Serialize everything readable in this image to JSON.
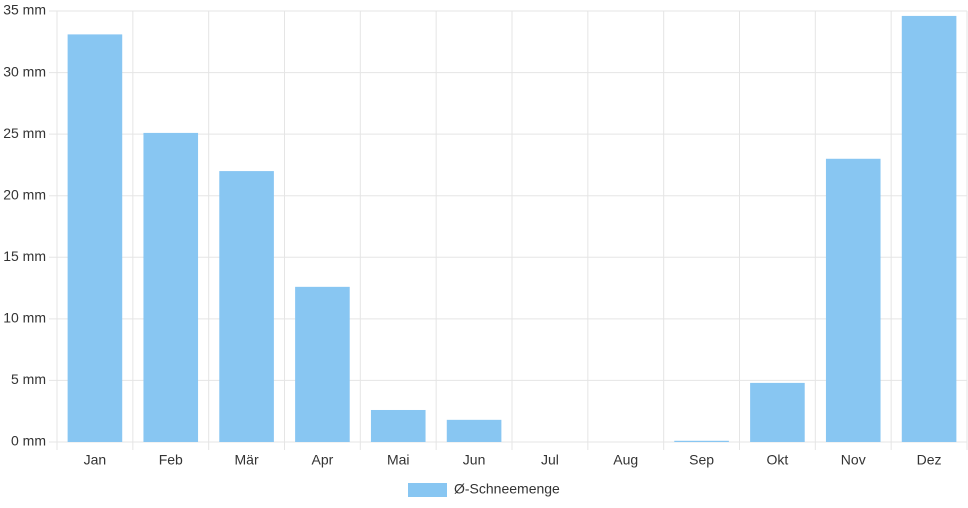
{
  "chart_data": {
    "type": "bar",
    "categories": [
      "Jan",
      "Feb",
      "Mär",
      "Apr",
      "Mai",
      "Jun",
      "Jul",
      "Aug",
      "Sep",
      "Okt",
      "Nov",
      "Dez"
    ],
    "series": [
      {
        "name": "Ø-Schneemenge",
        "color": "#88c6f2",
        "values": [
          33.1,
          25.1,
          22.0,
          12.6,
          2.6,
          1.8,
          0,
          0,
          0.1,
          4.8,
          23.0,
          34.6
        ]
      }
    ],
    "ylim": [
      0,
      35
    ],
    "yticks": [
      {
        "value": 0,
        "label": "0 mm"
      },
      {
        "value": 5,
        "label": "5 mm"
      },
      {
        "value": 10,
        "label": "10 mm"
      },
      {
        "value": 15,
        "label": "15 mm"
      },
      {
        "value": 20,
        "label": "20 mm"
      },
      {
        "value": 25,
        "label": "25 mm"
      },
      {
        "value": 30,
        "label": "30 mm"
      },
      {
        "value": 35,
        "label": "35 mm"
      }
    ],
    "grid": true,
    "legend": "bottom"
  }
}
